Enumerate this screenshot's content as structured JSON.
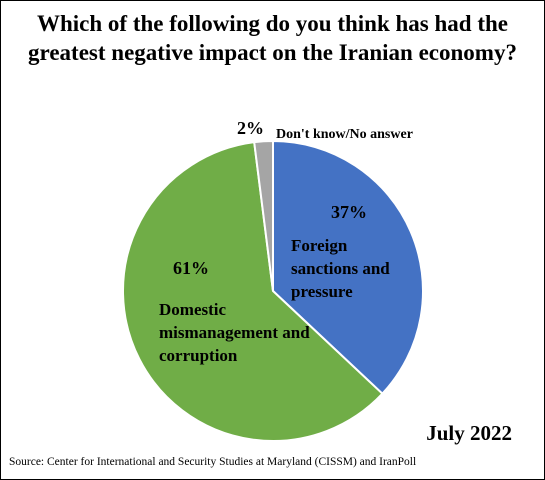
{
  "chart_data": {
    "type": "pie",
    "title": "Which of the following do you think has had the greatest negative impact on the Iranian economy?",
    "categories": [
      "Foreign sanctions and pressure",
      "Domestic mismanagement and corruption",
      "Don't know/No answer"
    ],
    "values": [
      37,
      61,
      2
    ],
    "value_labels": [
      "37%",
      "61%",
      "2%"
    ],
    "colors": [
      "#4472c4",
      "#70ad47",
      "#a5a5a5"
    ],
    "date": "July 2022",
    "source": "Source: Center for International and Security Studies at Maryland (CISSM) and IranPoll"
  }
}
